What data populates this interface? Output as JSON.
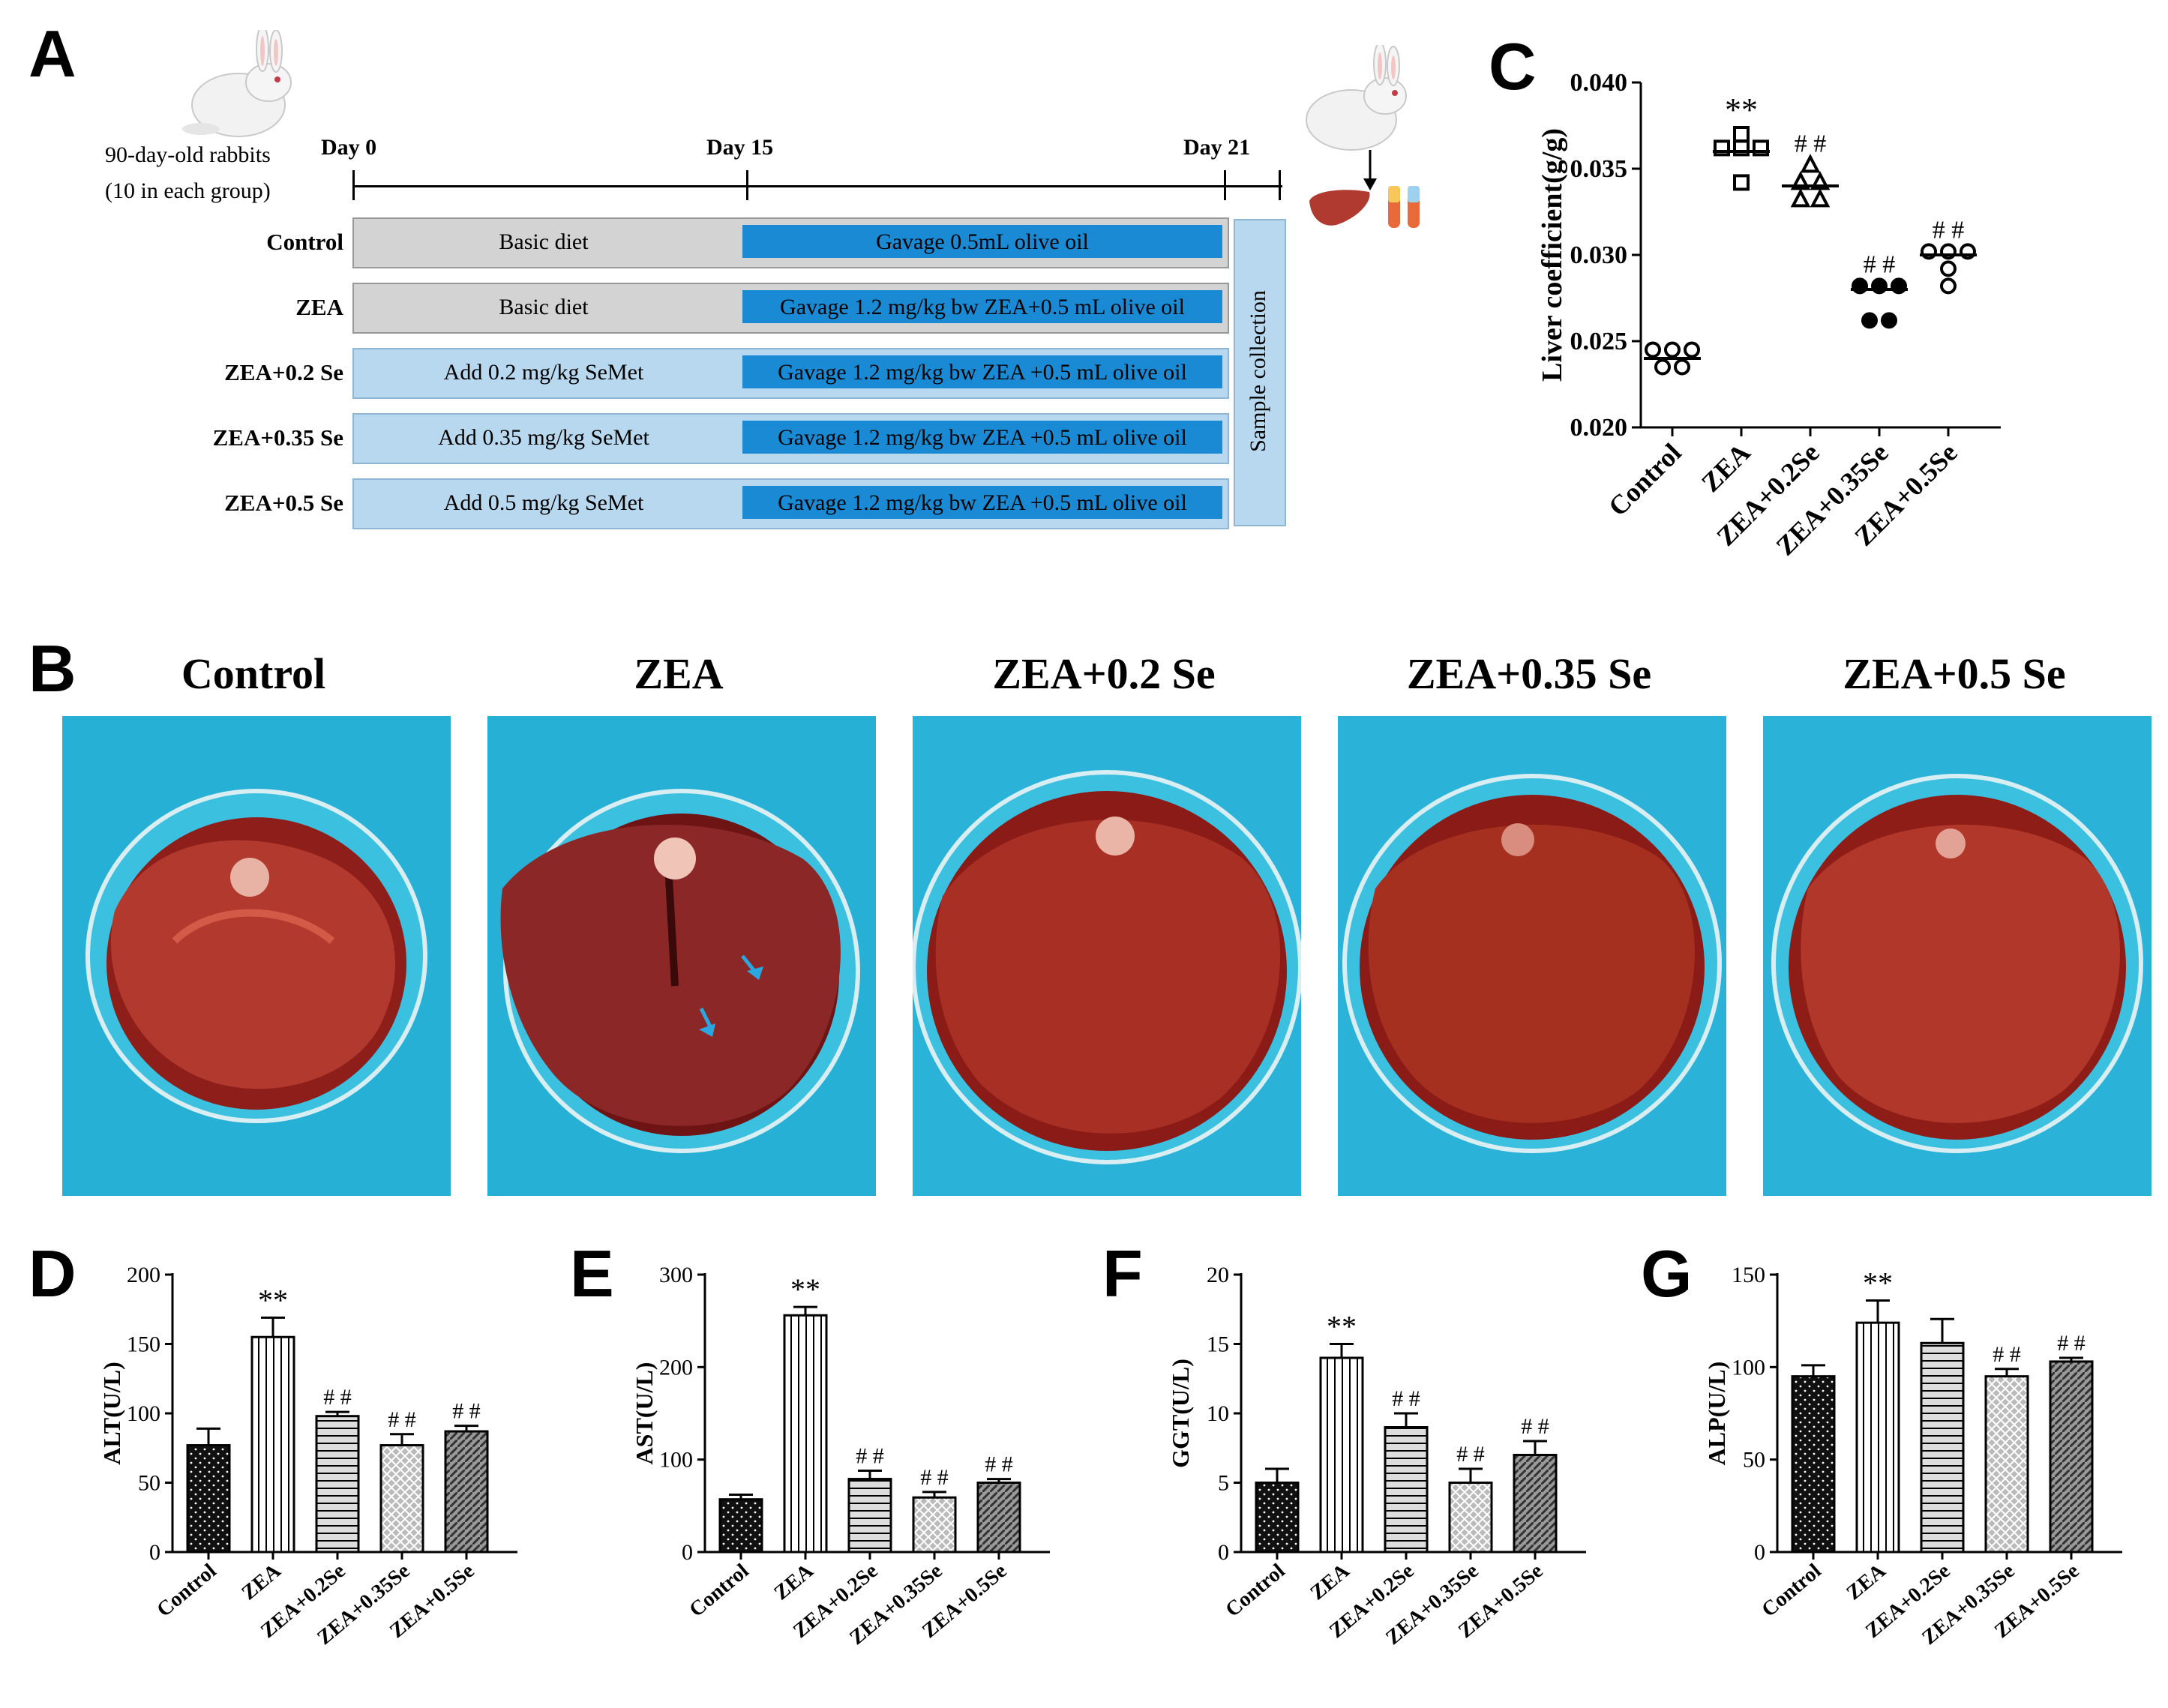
{
  "panel_labels": {
    "a": "A",
    "b": "B",
    "c": "C",
    "d": "D",
    "e": "E",
    "f": "F",
    "g": "G"
  },
  "panel_a": {
    "rabbits_line1": "90-day-old rabbits",
    "rabbits_line2": "(10 in each group)",
    "days": [
      "Day 0",
      "Day 15",
      "Day 21"
    ],
    "groups": [
      {
        "name": "Control",
        "diet": "Basic diet",
        "gavage": "Gavage 0.5mL olive oil"
      },
      {
        "name": "ZEA",
        "diet": "Basic diet",
        "gavage": "Gavage 1.2 mg/kg bw ZEA+0.5 mL olive oil"
      },
      {
        "name": "ZEA+0.2 Se",
        "diet": "Add 0.2 mg/kg SeMet",
        "gavage": "Gavage 1.2 mg/kg bw ZEA +0.5 mL olive oil"
      },
      {
        "name": "ZEA+0.35 Se",
        "diet": "Add 0.35 mg/kg SeMet",
        "gavage": "Gavage 1.2 mg/kg bw ZEA +0.5 mL olive oil"
      },
      {
        "name": "ZEA+0.5 Se",
        "diet": "Add 0.5 mg/kg SeMet",
        "gavage": "Gavage 1.2 mg/kg bw ZEA +0.5 mL olive oil"
      }
    ],
    "sample_collection": "Sample collection"
  },
  "panel_b": {
    "titles": [
      "Control",
      "ZEA",
      "ZEA+0.2 Se",
      "ZEA+0.35 Se",
      "ZEA+0.5 Se"
    ]
  },
  "chart_data": [
    {
      "id": "C",
      "type": "scatter",
      "ylabel": "Liver coefficient(g/g)",
      "ylim": [
        0.02,
        0.04
      ],
      "yticks": [
        "0.020",
        "0.025",
        "0.030",
        "0.035",
        "0.040"
      ],
      "categories": [
        "Control",
        "ZEA",
        "ZEA+0.2Se",
        "ZEA+0.35Se",
        "ZEA+0.5Se"
      ],
      "markers": [
        "circle",
        "square",
        "triangle",
        "diamond",
        "hexagon"
      ],
      "points": [
        [
          0.0245,
          0.0245,
          0.0245,
          0.0235,
          0.0235
        ],
        [
          0.037,
          0.0362,
          0.0362,
          0.0362,
          0.0342
        ],
        [
          0.0352,
          0.0342,
          0.0342,
          0.0332,
          0.0332
        ],
        [
          0.0282,
          0.0282,
          0.0282,
          0.0262,
          0.0262
        ],
        [
          0.0302,
          0.0302,
          0.0302,
          0.0292,
          0.0282
        ]
      ],
      "means": [
        0.024,
        0.036,
        0.034,
        0.028,
        0.03
      ],
      "annotations": [
        "",
        "**",
        "##",
        "##",
        "##"
      ]
    },
    {
      "id": "D",
      "type": "bar",
      "ylabel": "ALT(U/L)",
      "ylim": [
        0,
        200
      ],
      "yticks": [
        "0",
        "50",
        "100",
        "150",
        "200"
      ],
      "categories": [
        "Control",
        "ZEA",
        "ZEA+0.2Se",
        "ZEA+0.35Se",
        "ZEA+0.5Se"
      ],
      "values": [
        77,
        155,
        98,
        77,
        87
      ],
      "errors": [
        12,
        14,
        3,
        8,
        4
      ],
      "annotations": [
        "",
        "**",
        "##",
        "##",
        "##"
      ]
    },
    {
      "id": "E",
      "type": "bar",
      "ylabel": "AST(U/L)",
      "ylim": [
        0,
        300
      ],
      "yticks": [
        "0",
        "100",
        "200",
        "300"
      ],
      "categories": [
        "Control",
        "ZEA",
        "ZEA+0.2Se",
        "ZEA+0.35Se",
        "ZEA+0.5Se"
      ],
      "values": [
        57,
        256,
        79,
        59,
        75
      ],
      "errors": [
        5,
        9,
        9,
        6,
        4
      ],
      "annotations": [
        "",
        "**",
        "##",
        "##",
        "##"
      ]
    },
    {
      "id": "F",
      "type": "bar",
      "ylabel": "GGT(U/L)",
      "ylim": [
        0,
        20
      ],
      "yticks": [
        "0",
        "5",
        "10",
        "15",
        "20"
      ],
      "categories": [
        "Control",
        "ZEA",
        "ZEA+0.2Se",
        "ZEA+0.35Se",
        "ZEA+0.5Se"
      ],
      "values": [
        5,
        14,
        9,
        5,
        7
      ],
      "errors": [
        1,
        1,
        1,
        1,
        1
      ],
      "annotations": [
        "",
        "**",
        "##",
        "##",
        "##"
      ]
    },
    {
      "id": "G",
      "type": "bar",
      "ylabel": "ALP(U/L)",
      "ylim": [
        0,
        150
      ],
      "yticks": [
        "0",
        "50",
        "100",
        "150"
      ],
      "categories": [
        "Control",
        "ZEA",
        "ZEA+0.2Se",
        "ZEA+0.35Se",
        "ZEA+0.5Se"
      ],
      "values": [
        95,
        124,
        113,
        95,
        103
      ],
      "errors": [
        6,
        12,
        13,
        4,
        2
      ],
      "annotations": [
        "",
        "**",
        "",
        "##",
        "##"
      ]
    }
  ]
}
